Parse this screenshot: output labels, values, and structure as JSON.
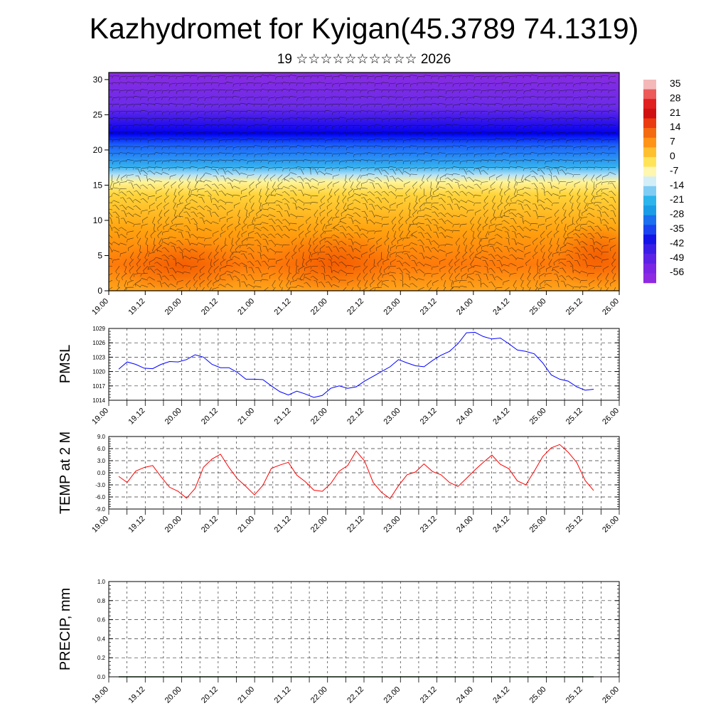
{
  "header": {
    "title": "Kazhydromet for Kyigan(45.3789 74.1319)",
    "subtitle": "19 ☆☆☆☆☆☆☆☆☆☆ 2026"
  },
  "time_labels": [
    "19.00",
    "19.12",
    "20.00",
    "20.12",
    "21.00",
    "21.12",
    "22.00",
    "22.12",
    "23.00",
    "23.12",
    "24.00",
    "24.12",
    "25.00",
    "25.12",
    "26.00"
  ],
  "colorbar": {
    "labels": [
      "35",
      "28",
      "21",
      "14",
      "7",
      "0",
      "-7",
      "-14",
      "-21",
      "-28",
      "-35",
      "-42",
      "-49",
      "-56"
    ]
  },
  "colors": {
    "pmsl_line": "#0000ff",
    "temp_line": "#ff0000",
    "precip_line": "#0b3d0b",
    "grid": "#333333"
  },
  "chart_data": [
    {
      "type": "heatmap",
      "title": "",
      "xlabel": "",
      "ylabel": "",
      "x_ticks": [
        "19.00",
        "19.12",
        "20.00",
        "20.12",
        "21.00",
        "21.12",
        "22.00",
        "22.12",
        "23.00",
        "23.12",
        "24.00",
        "24.12",
        "25.00",
        "25.12",
        "26.00"
      ],
      "y_ticks": [
        0,
        5,
        10,
        15,
        20,
        25,
        30
      ],
      "ylim": [
        0,
        31
      ],
      "colorscale_labels": [
        "35",
        "28",
        "21",
        "14",
        "7",
        "0",
        "-7",
        "-14",
        "-21",
        "-28",
        "-35",
        "-42",
        "-49",
        "-56"
      ],
      "levels": [
        0,
        5,
        10,
        15,
        20,
        25,
        30
      ],
      "values_by_level": [
        4,
        0,
        -6,
        -14,
        -40,
        -55,
        -58
      ],
      "overlay": "wind barbs"
    },
    {
      "type": "line",
      "ylabel": "PMSL",
      "ylim": [
        1014,
        1029
      ],
      "y_ticks": [
        1014,
        1017,
        1020,
        1023,
        1026,
        1029
      ],
      "x_ticks": [
        "19.00",
        "19.12",
        "20.00",
        "20.12",
        "21.00",
        "21.12",
        "22.00",
        "22.12",
        "23.00",
        "23.12",
        "24.00",
        "24.12",
        "25.00",
        "25.12",
        "26.00"
      ],
      "series": [
        {
          "values": [
            1020.5,
            1022,
            1021.5,
            1020.7,
            1020.6,
            1021.5,
            1022.1,
            1022,
            1022.5,
            1023.5,
            1023,
            1021.5,
            1020.8,
            1020.8,
            1019.8,
            1018.4,
            1018.4,
            1018.3,
            1017,
            1015.8,
            1015.1,
            1015.9,
            1015.3,
            1014.6,
            1015,
            1016.5,
            1017,
            1016.5,
            1016.8,
            1018,
            1019,
            1020,
            1021,
            1022.5,
            1021.8,
            1021.2,
            1021,
            1022.3,
            1023.4,
            1024.2,
            1025.8,
            1028.1,
            1028.2,
            1027.3,
            1026.8,
            1027,
            1025.8,
            1024.5,
            1024.2,
            1023.7,
            1021.8,
            1019.3,
            1018.4,
            1018,
            1016.8,
            1016.1,
            1016.3
          ]
        }
      ]
    },
    {
      "type": "line",
      "ylabel": "TEMP at 2 M",
      "ylim": [
        -9,
        9
      ],
      "y_ticks": [
        "-9.0",
        "-6.0",
        "-3.0",
        "0.0",
        "3.0",
        "6.0",
        "9.0"
      ],
      "x_ticks": [
        "19.00",
        "19.12",
        "20.00",
        "20.12",
        "21.00",
        "21.12",
        "22.00",
        "22.12",
        "23.00",
        "23.12",
        "24.00",
        "24.12",
        "25.00",
        "25.12",
        "26.00"
      ],
      "series": [
        {
          "values": [
            -0.9,
            -2.4,
            0.4,
            1.3,
            1.8,
            -1,
            -3.6,
            -4.6,
            -6.3,
            -3.9,
            1.4,
            3.4,
            4.6,
            1.3,
            -1.5,
            -3.4,
            -5.5,
            -3.1,
            1.1,
            1.9,
            2.6,
            -0.6,
            -2.2,
            -4.3,
            -4.6,
            -2.7,
            0.4,
            1.8,
            5.4,
            2.9,
            -2.4,
            -4.9,
            -6.4,
            -3.2,
            -0.5,
            0.2,
            2.2,
            0.3,
            -0.5,
            -2.4,
            -3.4,
            -1.4,
            0.7,
            2.6,
            4.4,
            2.1,
            1,
            -2,
            -3,
            0.4,
            4,
            6.2,
            7,
            5.1,
            2.6,
            -1.9,
            -4.4
          ]
        }
      ]
    },
    {
      "type": "line",
      "ylabel": "PRECIP, mm",
      "ylim": [
        0,
        1
      ],
      "y_ticks": [
        "0.0",
        "0.2",
        "0.4",
        "0.6",
        "0.8",
        "1.0"
      ],
      "x_ticks": [
        "19.00",
        "19.12",
        "20.00",
        "20.12",
        "21.00",
        "21.12",
        "22.00",
        "22.12",
        "23.00",
        "23.12",
        "24.00",
        "24.12",
        "25.00",
        "25.12",
        "26.00"
      ],
      "series": [
        {
          "values": [
            0,
            0,
            0,
            0,
            0,
            0,
            0,
            0,
            0,
            0,
            0,
            0,
            0,
            0,
            0,
            0,
            0,
            0,
            0,
            0,
            0,
            0,
            0,
            0,
            0,
            0,
            0,
            0,
            0,
            0,
            0,
            0,
            0,
            0,
            0,
            0,
            0,
            0,
            0,
            0,
            0,
            0,
            0,
            0,
            0,
            0,
            0,
            0,
            0,
            0,
            0,
            0,
            0,
            0,
            0,
            0,
            0
          ]
        }
      ]
    }
  ]
}
